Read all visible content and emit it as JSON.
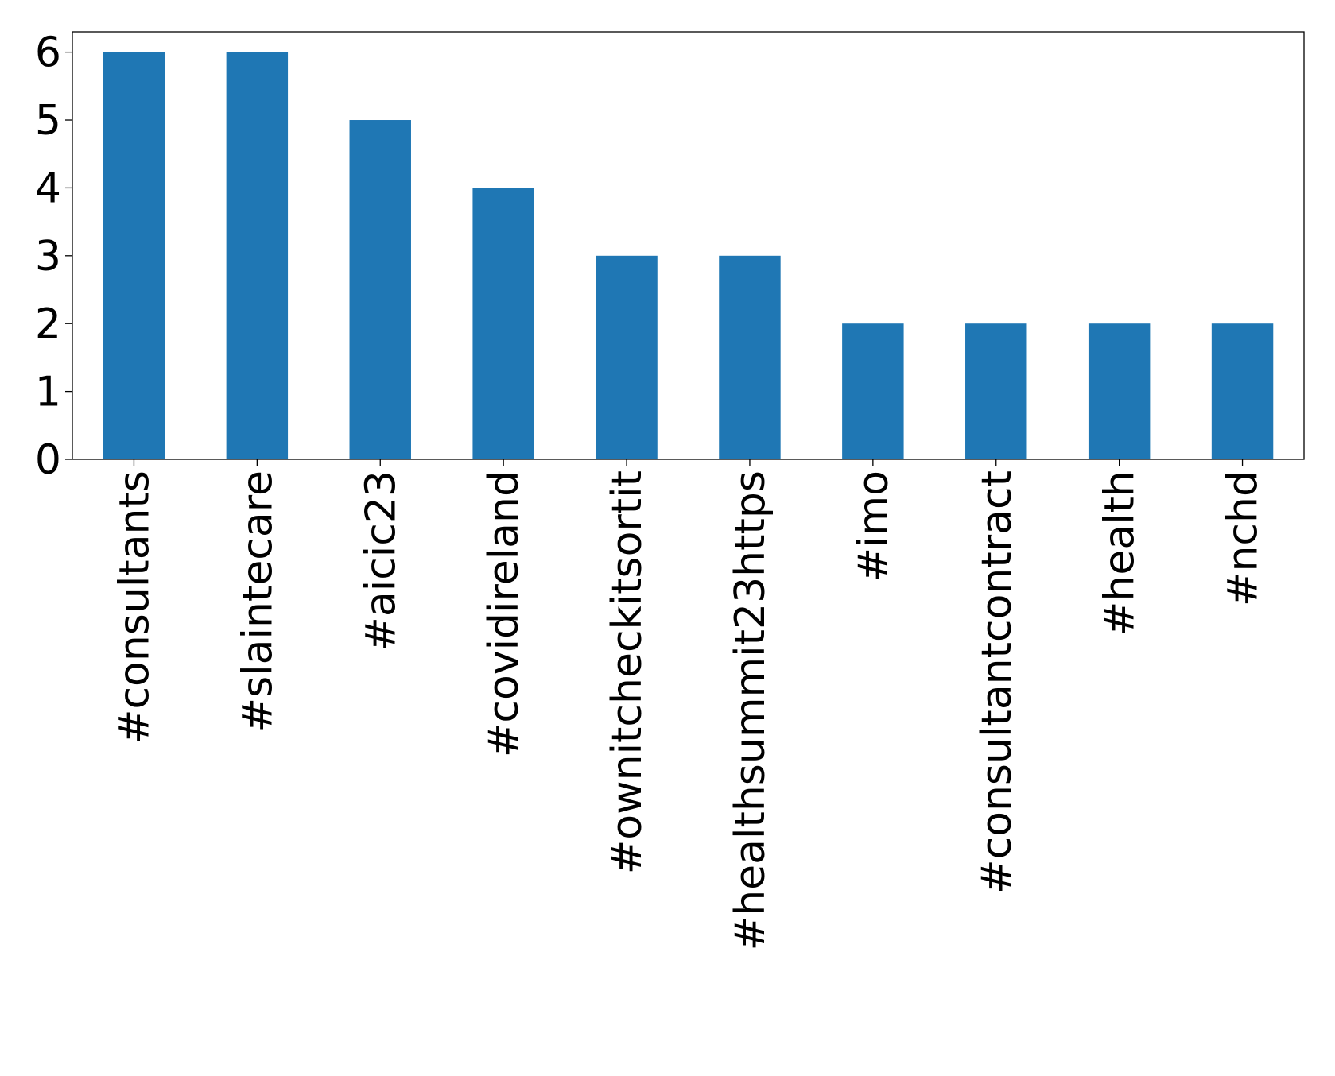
{
  "chart_data": {
    "type": "bar",
    "categories": [
      "#consultants",
      "#slaintecare",
      "#aicic23",
      "#covidireland",
      "#ownitcheckitsortit",
      "#healthsummit23https",
      "#imo",
      "#consultantcontract",
      "#health",
      "#nchd"
    ],
    "values": [
      6,
      6,
      5,
      4,
      3,
      3,
      2,
      2,
      2,
      2
    ],
    "color": "#1f77b4",
    "ylim": [
      0,
      6.3
    ],
    "yticks": [
      0,
      1,
      2,
      3,
      4,
      5,
      6
    ],
    "grid": false
  }
}
